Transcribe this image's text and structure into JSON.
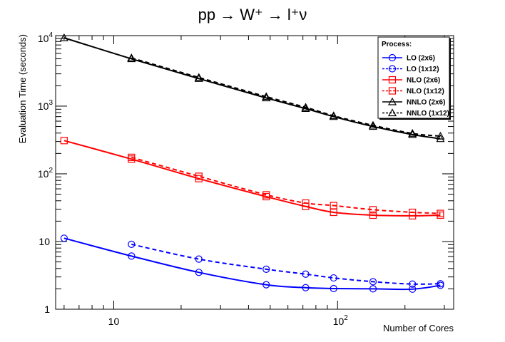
{
  "chart_data": {
    "type": "line",
    "title": "pp → W⁺ → l⁺ν",
    "xlabel": "Number of Cores",
    "ylabel": "Evaluation Time (seconds)",
    "xscale": "log",
    "yscale": "log",
    "xlim": [
      5.5,
      330
    ],
    "ylim": [
      1,
      11000
    ],
    "x_ticks": [
      {
        "value": 10,
        "base": "10",
        "exp": ""
      },
      {
        "value": 100,
        "base": "10",
        "exp": "2"
      }
    ],
    "y_ticks": [
      {
        "value": 1,
        "base": "1",
        "exp": ""
      },
      {
        "value": 10,
        "base": "10",
        "exp": ""
      },
      {
        "value": 100,
        "base": "10",
        "exp": "2"
      },
      {
        "value": 1000,
        "base": "10",
        "exp": "3"
      },
      {
        "value": 10000,
        "base": "10",
        "exp": "4"
      }
    ],
    "legend": {
      "title": "Process:",
      "position": "top-right"
    },
    "series": [
      {
        "name": "LO (2x6)",
        "color": "#0000ff",
        "dash": "solid",
        "marker": "circle",
        "x": [
          6,
          12,
          24,
          48,
          72,
          96,
          144,
          216,
          288
        ],
        "y": [
          11.2,
          6.1,
          3.5,
          2.3,
          2.08,
          2.02,
          2.0,
          1.98,
          2.25
        ]
      },
      {
        "name": "LO (1x12)",
        "color": "#0000ff",
        "dash": "dashed",
        "marker": "circle",
        "x": [
          12,
          24,
          48,
          72,
          96,
          144,
          216,
          288
        ],
        "y": [
          9.1,
          5.5,
          3.9,
          3.3,
          2.9,
          2.55,
          2.35,
          2.38
        ]
      },
      {
        "name": "NLO (2x6)",
        "color": "#ff0000",
        "dash": "solid",
        "marker": "square",
        "x": [
          6,
          12,
          24,
          48,
          72,
          96,
          144,
          216,
          288
        ],
        "y": [
          310,
          165,
          85,
          46,
          33,
          27,
          24.5,
          24,
          24.5
        ]
      },
      {
        "name": "NLO (1x12)",
        "color": "#ff0000",
        "dash": "dashed",
        "marker": "square",
        "x": [
          12,
          24,
          48,
          72,
          96,
          144,
          216,
          288
        ],
        "y": [
          175,
          92,
          49,
          37,
          34,
          29.5,
          27,
          26
        ]
      },
      {
        "name": "NNLO (2x6)",
        "color": "#000000",
        "dash": "solid",
        "marker": "triangle",
        "x": [
          6,
          12,
          24,
          48,
          72,
          96,
          144,
          216,
          288
        ],
        "y": [
          10200,
          5000,
          2550,
          1320,
          920,
          700,
          500,
          380,
          330
        ]
      },
      {
        "name": "NNLO (1x12)",
        "color": "#000000",
        "dash": "dashed",
        "marker": "triangle",
        "x": [
          12,
          24,
          48,
          72,
          96,
          144,
          216,
          288
        ],
        "y": [
          5150,
          2650,
          1380,
          960,
          720,
          520,
          395,
          360
        ]
      }
    ]
  }
}
